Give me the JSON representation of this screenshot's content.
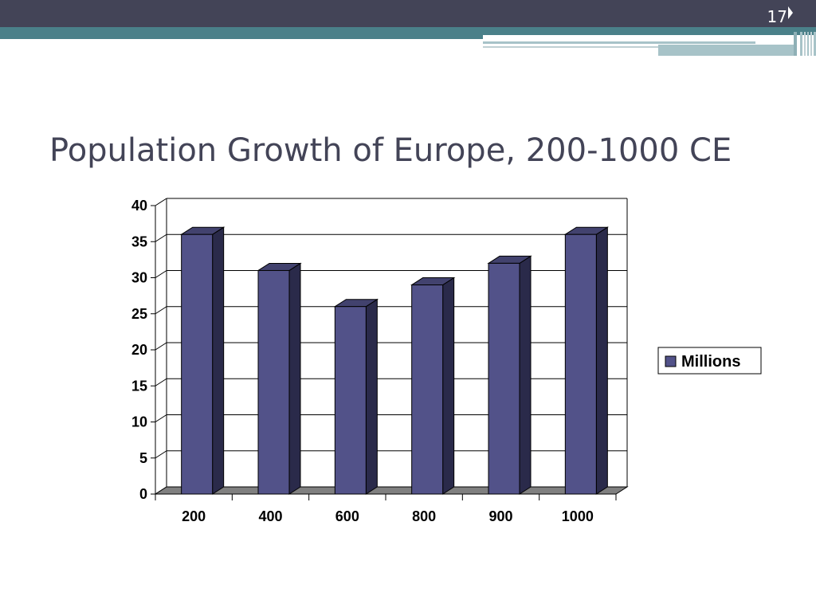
{
  "slide": {
    "number": "17",
    "title": "Population Growth of Europe, 200-1000 CE"
  },
  "colors": {
    "header_dark": "#434457",
    "header_teal": "#4a8089",
    "bar_face": "#525289",
    "bar_top": "#42426e",
    "bar_side": "#2a2a4a",
    "floor": "#808080"
  },
  "chart_data": {
    "type": "bar",
    "title": "",
    "xlabel": "",
    "ylabel": "",
    "categories": [
      "200",
      "400",
      "600",
      "800",
      "900",
      "1000"
    ],
    "series": [
      {
        "name": "Millions",
        "values": [
          36,
          31,
          26,
          29,
          32,
          36
        ]
      }
    ],
    "ylim": [
      0,
      40
    ],
    "yticks": [
      0,
      5,
      10,
      15,
      20,
      25,
      30,
      35,
      40
    ],
    "grid": true,
    "legend_position": "right",
    "style": "3d-column"
  }
}
